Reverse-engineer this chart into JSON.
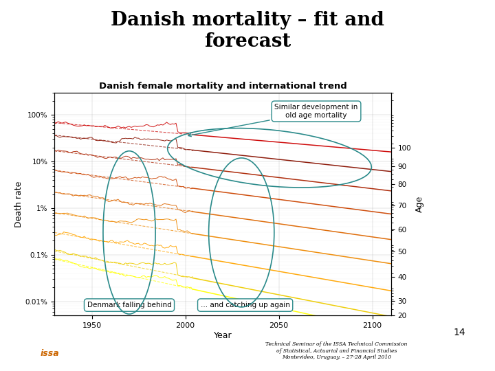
{
  "title": "Danish mortality – fit and\nforecast",
  "subtitle": "Danish female mortality and international trend",
  "xlabel": "Year",
  "ylabel": "Death rate",
  "ages": [
    20,
    30,
    40,
    50,
    60,
    70,
    80,
    90,
    100
  ],
  "age_colors": {
    "20": "#ffff00",
    "30": "#eecc00",
    "40": "#ffa500",
    "50": "#ee8800",
    "60": "#dd6600",
    "70": "#cc4400",
    "80": "#aa2200",
    "90": "#881100",
    "100": "#cc0000"
  },
  "base_rates": {
    "20": 0.0008,
    "30": 0.0012,
    "40": 0.003,
    "50": 0.008,
    "60": 0.022,
    "70": 0.065,
    "80": 0.17,
    "90": 0.37,
    "100": 0.68
  },
  "improvement": {
    "20": 0.02,
    "30": 0.018,
    "40": 0.016,
    "50": 0.014,
    "60": 0.013,
    "70": 0.012,
    "80": 0.011,
    "90": 0.01,
    "100": 0.008
  },
  "ytick_labels": [
    "0.01%",
    "0.1%",
    "1%",
    "10%",
    "100%"
  ],
  "ytick_vals": [
    0.0001,
    0.001,
    0.01,
    0.1,
    1.0
  ],
  "xtick_vals": [
    1950,
    2000,
    2050,
    2100
  ],
  "annot_box1": "Denmark falling behind",
  "annot_box2": "... and catching up again",
  "annot_box3": "Similar development in\nold age mortality",
  "age_label": "Age",
  "page_num": "14",
  "footer_text": "Technical Seminar of the ISSA Technical Commission\nof Statistical, Actuarial and Financial Studies\nMontevideo, Uruguay. – 27-28 April 2010",
  "bg_color": "#ffffff",
  "teal_color": "#2a8a8a"
}
